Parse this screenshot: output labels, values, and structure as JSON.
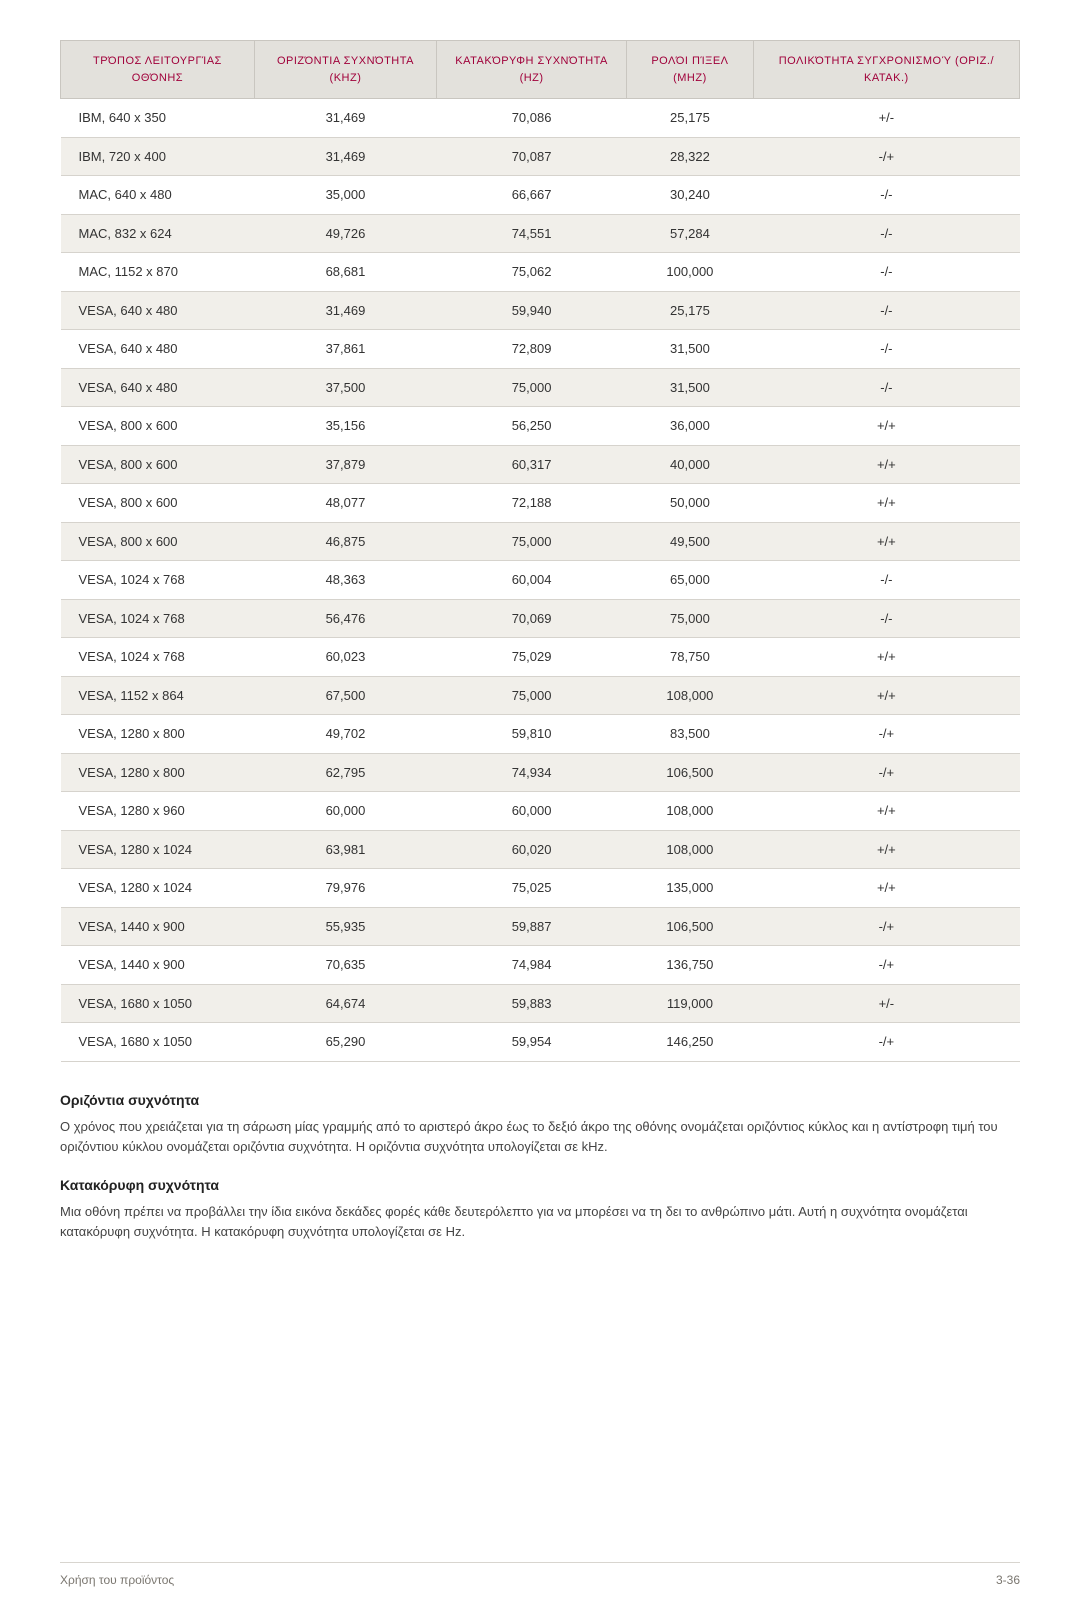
{
  "table": {
    "headers": [
      "ΤΡΌΠΟΣ ΛΕΙΤΟΥΡΓΊΑΣ ΟΘΌΝΗΣ",
      "ΟΡΙΖΌΝΤΙΑ ΣΥΧΝΌΤΗΤΑ (KHZ)",
      "ΚΑΤΑΚΌΡΥΦΗ ΣΥΧΝΌΤΗΤΑ (HZ)",
      "ΡΟΛΌΙ ΠΊΞΕΛ (MHZ)",
      "ΠΟΛΙΚΌΤΗΤΑ ΣΥΓΧΡΟΝΙΣΜΟΎ (ΟΡΙΖ./ΚΑΤΑΚ.)"
    ],
    "rows": [
      [
        "IBM, 640 x 350",
        "31,469",
        "70,086",
        "25,175",
        "+/-"
      ],
      [
        "IBM, 720 x 400",
        "31,469",
        "70,087",
        "28,322",
        "-/+"
      ],
      [
        "MAC, 640 x 480",
        "35,000",
        "66,667",
        "30,240",
        "-/-"
      ],
      [
        "MAC, 832 x 624",
        "49,726",
        "74,551",
        "57,284",
        "-/-"
      ],
      [
        "MAC, 1152 x 870",
        "68,681",
        "75,062",
        "100,000",
        "-/-"
      ],
      [
        "VESA, 640 x 480",
        "31,469",
        "59,940",
        "25,175",
        "-/-"
      ],
      [
        "VESA, 640 x 480",
        "37,861",
        "72,809",
        "31,500",
        "-/-"
      ],
      [
        "VESA, 640 x 480",
        "37,500",
        "75,000",
        "31,500",
        "-/-"
      ],
      [
        "VESA, 800 x 600",
        "35,156",
        "56,250",
        "36,000",
        "+/+"
      ],
      [
        "VESA, 800 x 600",
        "37,879",
        "60,317",
        "40,000",
        "+/+"
      ],
      [
        "VESA, 800 x 600",
        "48,077",
        "72,188",
        "50,000",
        "+/+"
      ],
      [
        "VESA, 800 x 600",
        "46,875",
        "75,000",
        "49,500",
        "+/+"
      ],
      [
        "VESA, 1024 x 768",
        "48,363",
        "60,004",
        "65,000",
        "-/-"
      ],
      [
        "VESA, 1024 x 768",
        "56,476",
        "70,069",
        "75,000",
        "-/-"
      ],
      [
        "VESA, 1024 x 768",
        "60,023",
        "75,029",
        "78,750",
        "+/+"
      ],
      [
        "VESA, 1152 x 864",
        "67,500",
        "75,000",
        "108,000",
        "+/+"
      ],
      [
        "VESA, 1280 x 800",
        "49,702",
        "59,810",
        "83,500",
        "-/+"
      ],
      [
        "VESA, 1280 x 800",
        "62,795",
        "74,934",
        "106,500",
        "-/+"
      ],
      [
        "VESA, 1280 x 960",
        "60,000",
        "60,000",
        "108,000",
        "+/+"
      ],
      [
        "VESA, 1280 x 1024",
        "63,981",
        "60,020",
        "108,000",
        "+/+"
      ],
      [
        "VESA, 1280 x 1024",
        "79,976",
        "75,025",
        "135,000",
        "+/+"
      ],
      [
        "VESA, 1440 x 900",
        "55,935",
        "59,887",
        "106,500",
        "-/+"
      ],
      [
        "VESA, 1440 x 900",
        "70,635",
        "74,984",
        "136,750",
        "-/+"
      ],
      [
        "VESA, 1680 x 1050",
        "64,674",
        "59,883",
        "119,000",
        "+/-"
      ],
      [
        "VESA, 1680 x 1050",
        "65,290",
        "59,954",
        "146,250",
        "-/+"
      ]
    ]
  },
  "sections": [
    {
      "title": "Οριζόντια συχνότητα",
      "body": "Ο χρόνος που χρειάζεται για τη σάρωση μίας γραμμής από το αριστερό άκρο έως το δεξιό άκρο της οθόνης ονομάζεται οριζόντιος κύκλος και η αντίστροφη τιμή του οριζόντιου κύκλου ονομάζεται οριζόντια συχνότητα. Η οριζόντια συχνότητα υπολογίζεται σε kHz."
    },
    {
      "title": "Κατακόρυφη συχνότητα",
      "body": "Μια οθόνη πρέπει να προβάλλει την ίδια εικόνα δεκάδες φορές κάθε δευτερόλεπτο για να μπορέσει να τη δει το ανθρώπινο μάτι. Αυτή η συχνότητα ονομάζεται κατακόρυφη συχνότητα. Η κατακόρυφη συχνότητα υπολογίζεται σε Hz."
    }
  ],
  "footer": {
    "left": "Χρήση του προϊόντος",
    "right": "3-36"
  }
}
